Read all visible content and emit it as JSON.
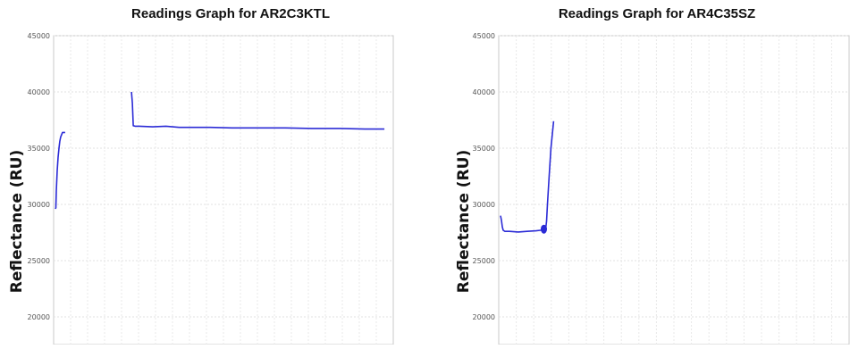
{
  "chart_data": [
    {
      "type": "line",
      "title": "Readings Graph for AR2C3KTL",
      "ylabel": "Reflectance (RU)",
      "xlabel": "",
      "ylim": [
        18500,
        45000
      ],
      "yticks": [
        "45000",
        "40000",
        "35000",
        "30000",
        "25000",
        "20000"
      ],
      "grid": true,
      "series_color": "#2b2bd6",
      "series": [
        {
          "x": [
            0,
            0.5,
            1,
            2,
            3,
            4,
            5,
            6,
            7,
            8,
            9,
            10,
            11
          ],
          "values": [
            29600,
            29700,
            31200,
            33000,
            34200,
            35000,
            35600,
            36000,
            36200,
            36400,
            36400,
            36400,
            36400
          ]
        },
        {
          "x": [
            86,
            87,
            88,
            90,
            95,
            110,
            125,
            140,
            155,
            175,
            200,
            230,
            260,
            290,
            320,
            350,
            372
          ],
          "values": [
            40000,
            39000,
            37000,
            36950,
            36950,
            36900,
            36950,
            36850,
            36850,
            36850,
            36800,
            36800,
            36800,
            36750,
            36750,
            36700,
            36700
          ]
        }
      ]
    },
    {
      "type": "line",
      "title": "Readings Graph for AR4C35SZ",
      "ylabel": "Reflectance (RU)",
      "xlabel": "",
      "ylim": [
        18500,
        45000
      ],
      "yticks": [
        "45000",
        "40000",
        "35000",
        "30000",
        "25000",
        "20000"
      ],
      "grid": true,
      "series_color": "#2b2bd6",
      "series": [
        {
          "x": [
            0,
            1,
            2,
            3,
            5,
            10,
            20,
            30,
            40,
            45,
            50,
            51,
            52,
            53,
            55,
            57,
            60
          ],
          "values": [
            29000,
            28600,
            28000,
            27700,
            27600,
            27600,
            27550,
            27600,
            27650,
            27700,
            27700,
            27800,
            28500,
            30000,
            32500,
            35000,
            37400
          ]
        }
      ],
      "marker": {
        "x": 49,
        "value": 27800
      }
    }
  ]
}
